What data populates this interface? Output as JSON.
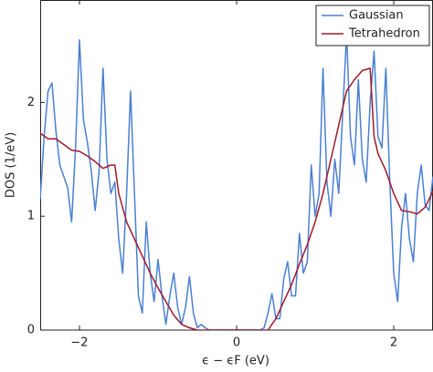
{
  "chart_data": {
    "type": "line",
    "xlabel": "ϵ − ϵF (eV)",
    "ylabel": "DOS (1/eV)",
    "xlim": [
      -2.5,
      2.5
    ],
    "ylim": [
      0,
      2.9
    ],
    "xticks": [
      {
        "value": -2,
        "label": "−2"
      },
      0,
      2
    ],
    "yticks": [
      0,
      1,
      2
    ],
    "legend": "upper right",
    "series": [
      {
        "name": "Gaussian",
        "color": "#4a7fd4",
        "x": [
          -2.5,
          -2.45,
          -2.4,
          -2.35,
          -2.3,
          -2.25,
          -2.2,
          -2.15,
          -2.1,
          -2.05,
          -2.0,
          -1.95,
          -1.9,
          -1.85,
          -1.8,
          -1.75,
          -1.7,
          -1.65,
          -1.6,
          -1.55,
          -1.5,
          -1.45,
          -1.4,
          -1.35,
          -1.3,
          -1.25,
          -1.2,
          -1.15,
          -1.1,
          -1.05,
          -1.0,
          -0.95,
          -0.9,
          -0.85,
          -0.8,
          -0.75,
          -0.7,
          -0.65,
          -0.6,
          -0.55,
          -0.5,
          -0.45,
          -0.4,
          -0.35,
          -0.3,
          -0.25,
          -0.2,
          -0.15,
          -0.1,
          -0.05,
          0,
          0.05,
          0.1,
          0.15,
          0.2,
          0.25,
          0.3,
          0.35,
          0.4,
          0.45,
          0.5,
          0.55,
          0.6,
          0.65,
          0.7,
          0.75,
          0.8,
          0.85,
          0.9,
          0.95,
          1.0,
          1.05,
          1.1,
          1.15,
          1.2,
          1.25,
          1.3,
          1.35,
          1.4,
          1.45,
          1.5,
          1.55,
          1.6,
          1.65,
          1.7,
          1.75,
          1.8,
          1.85,
          1.9,
          1.95,
          2.0,
          2.05,
          2.1,
          2.15,
          2.2,
          2.25,
          2.3,
          2.35,
          2.4,
          2.45,
          2.5
        ],
        "values": [
          1.15,
          1.7,
          2.1,
          2.17,
          1.75,
          1.45,
          1.35,
          1.25,
          0.95,
          1.6,
          2.55,
          1.85,
          1.65,
          1.4,
          1.05,
          1.4,
          2.3,
          1.5,
          1.2,
          1.3,
          0.8,
          0.5,
          1.2,
          2.1,
          1.2,
          0.3,
          0.15,
          0.95,
          0.5,
          0.25,
          0.62,
          0.3,
          0.05,
          0.3,
          0.5,
          0.2,
          0.05,
          0.2,
          0.47,
          0.15,
          0.02,
          0.05,
          0.02,
          0,
          0,
          0,
          0,
          0,
          0,
          0,
          0,
          0,
          0,
          0,
          0,
          0,
          0,
          0.02,
          0.15,
          0.32,
          0.1,
          0.1,
          0.45,
          0.6,
          0.3,
          0.3,
          0.85,
          0.5,
          0.6,
          1.45,
          1.0,
          1.2,
          2.3,
          1.3,
          1.0,
          1.5,
          1.2,
          1.9,
          2.6,
          1.7,
          1.45,
          2.2,
          1.5,
          1.3,
          2.0,
          2.45,
          1.7,
          1.6,
          2.3,
          1.3,
          0.5,
          0.25,
          0.9,
          1.2,
          0.8,
          0.6,
          1.2,
          1.45,
          1.1,
          1.05,
          1.35
        ]
      },
      {
        "name": "Tetrahedron",
        "color": "#a01828",
        "x": [
          -2.5,
          -2.4,
          -2.3,
          -2.2,
          -2.1,
          -2.0,
          -1.9,
          -1.8,
          -1.7,
          -1.6,
          -1.55,
          -1.5,
          -1.4,
          -1.3,
          -1.2,
          -1.1,
          -1.0,
          -0.9,
          -0.8,
          -0.7,
          -0.6,
          -0.5,
          0.4,
          0.5,
          0.6,
          0.7,
          0.8,
          0.9,
          1.0,
          1.1,
          1.2,
          1.3,
          1.4,
          1.5,
          1.6,
          1.7,
          1.75,
          1.8,
          1.9,
          2.0,
          2.1,
          2.2,
          2.3,
          2.4,
          2.5
        ],
        "values": [
          1.73,
          1.68,
          1.68,
          1.63,
          1.58,
          1.57,
          1.53,
          1.48,
          1.42,
          1.45,
          1.45,
          1.2,
          0.95,
          0.8,
          0.65,
          0.5,
          0.37,
          0.25,
          0.13,
          0.05,
          0.02,
          0,
          0,
          0.1,
          0.25,
          0.4,
          0.58,
          0.75,
          0.95,
          1.2,
          1.5,
          1.8,
          2.1,
          2.2,
          2.28,
          2.3,
          1.7,
          1.55,
          1.4,
          1.2,
          1.05,
          1.04,
          1.02,
          1.08,
          1.22
        ]
      }
    ]
  }
}
